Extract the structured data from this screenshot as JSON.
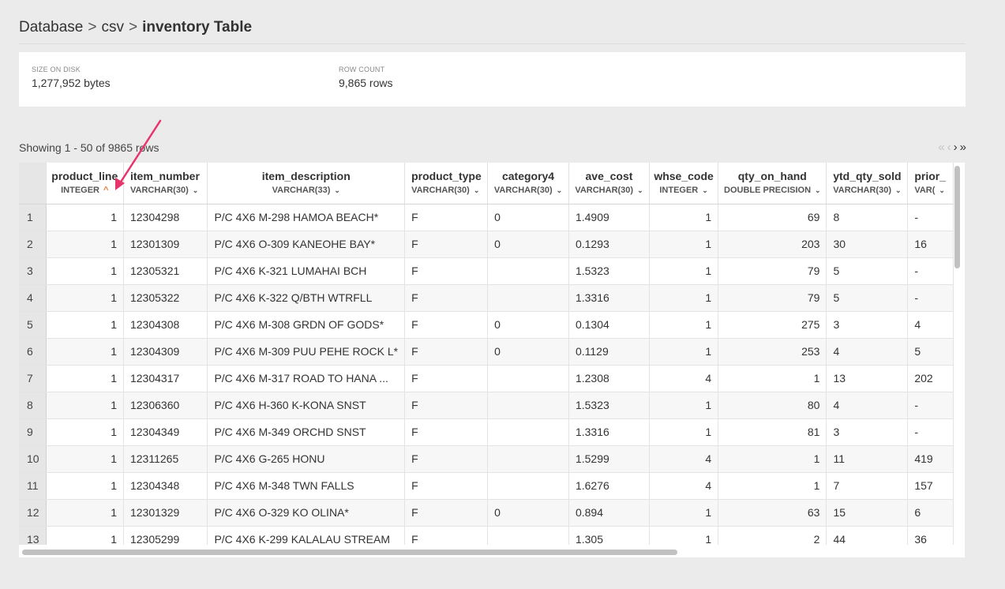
{
  "breadcrumb": {
    "root": "Database",
    "schema": "csv",
    "table": "inventory Table",
    "separator": ">"
  },
  "stats": [
    {
      "label": "SIZE ON DISK",
      "value": "1,277,952 bytes"
    },
    {
      "label": "ROW COUNT",
      "value": "9,865 rows"
    }
  ],
  "showing": "Showing 1 - 50 of 9865 rows",
  "pager": {
    "first": "«",
    "prev": "‹",
    "next": "›",
    "last": "»"
  },
  "columns": [
    {
      "name": "product_line",
      "type": "INTEGER",
      "sort": true
    },
    {
      "name": "item_number",
      "type": "VARCHAR(30)"
    },
    {
      "name": "item_description",
      "type": "VARCHAR(33)"
    },
    {
      "name": "product_type",
      "type": "VARCHAR(30)"
    },
    {
      "name": "category4",
      "type": "VARCHAR(30)"
    },
    {
      "name": "ave_cost",
      "type": "VARCHAR(30)"
    },
    {
      "name": "whse_code",
      "type": "INTEGER"
    },
    {
      "name": "qty_on_hand",
      "type": "DOUBLE PRECISION"
    },
    {
      "name": "ytd_qty_sold",
      "type": "VARCHAR(30)"
    },
    {
      "name": "prior_",
      "type": "VAR("
    }
  ],
  "rows": [
    [
      "1",
      "1",
      "12304298",
      "P/C 4X6 M-298 HAMOA BEACH*",
      "F",
      "0",
      "1.4909",
      "1",
      "69",
      "8",
      "-"
    ],
    [
      "2",
      "1",
      "12301309",
      "P/C 4X6 O-309 KANEOHE BAY*",
      "F",
      "0",
      "0.1293",
      "1",
      "203",
      "30",
      "16"
    ],
    [
      "3",
      "1",
      "12305321",
      "P/C 4X6 K-321 LUMAHAI BCH",
      "F",
      "",
      "1.5323",
      "1",
      "79",
      "5",
      "-"
    ],
    [
      "4",
      "1",
      "12305322",
      "P/C 4X6 K-322 Q/BTH WTRFLL",
      "F",
      "",
      "1.3316",
      "1",
      "79",
      "5",
      "-"
    ],
    [
      "5",
      "1",
      "12304308",
      "P/C 4X6 M-308 GRDN OF GODS*",
      "F",
      "0",
      "0.1304",
      "1",
      "275",
      "3",
      "4"
    ],
    [
      "6",
      "1",
      "12304309",
      "P/C 4X6 M-309 PUU PEHE ROCK L*",
      "F",
      "0",
      "0.1129",
      "1",
      "253",
      "4",
      "5"
    ],
    [
      "7",
      "1",
      "12304317",
      "P/C 4X6 M-317 ROAD TO HANA ...",
      "F",
      "",
      "1.2308",
      "4",
      "1",
      "13",
      "202"
    ],
    [
      "8",
      "1",
      "12306360",
      "P/C 4X6 H-360 K-KONA SNST",
      "F",
      "",
      "1.5323",
      "1",
      "80",
      "4",
      "-"
    ],
    [
      "9",
      "1",
      "12304349",
      "P/C 4X6 M-349 ORCHD SNST",
      "F",
      "",
      "1.3316",
      "1",
      "81",
      "3",
      "-"
    ],
    [
      "10",
      "1",
      "12311265",
      "P/C 4X6 G-265 HONU",
      "F",
      "",
      "1.5299",
      "4",
      "1",
      "11",
      "419"
    ],
    [
      "11",
      "1",
      "12304348",
      "P/C 4X6 M-348 TWN FALLS",
      "F",
      "",
      "1.6276",
      "4",
      "1",
      "7",
      "157"
    ],
    [
      "12",
      "1",
      "12301329",
      "P/C 4X6 O-329 KO OLINA*",
      "F",
      "0",
      "0.894",
      "1",
      "63",
      "15",
      "6"
    ],
    [
      "13",
      "1",
      "12305299",
      "P/C 4X6 K-299 KALALAU STREAM",
      "F",
      "",
      "1.305",
      "1",
      "2",
      "44",
      "36"
    ]
  ],
  "colors": {
    "sort_accent": "#e6772e",
    "annotation_arrow": "#e8336b"
  }
}
